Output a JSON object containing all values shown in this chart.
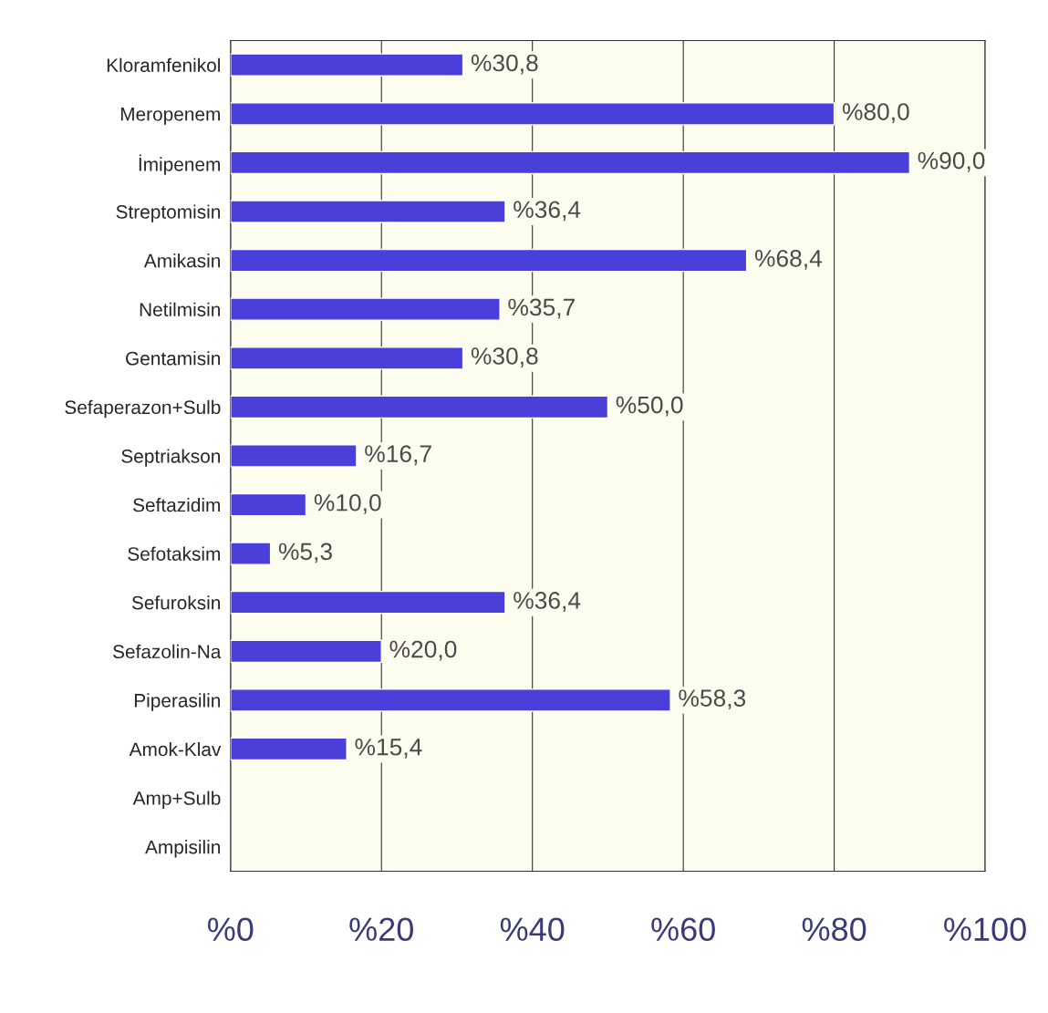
{
  "chart_data": {
    "type": "bar",
    "orientation": "horizontal",
    "categories": [
      "Kloramfenikol",
      "Meropenem",
      "İmipenem",
      "Streptomisin",
      "Amikasin",
      "Netilmisin",
      "Gentamisin",
      "Sefaperazon+Sulb",
      "Septriakson",
      "Seftazidim",
      "Sefotaksim",
      "Sefuroksin",
      "Sefazolin-Na",
      "Piperasilin",
      "Amok-Klav",
      "Amp+Sulb",
      "Ampisilin"
    ],
    "values": [
      30.8,
      80.0,
      90.0,
      36.4,
      68.4,
      35.7,
      30.8,
      50.0,
      16.7,
      10.0,
      5.3,
      36.4,
      20.0,
      58.3,
      15.4,
      null,
      null
    ],
    "value_labels": [
      "%30,8",
      "%80,0",
      "%90,0",
      "%36,4",
      "%68,4",
      "%35,7",
      "%30,8",
      "%50,0",
      "%16,7",
      "%10,0",
      "%5,3",
      "%36,4",
      "%20,0",
      "%58,3",
      "%15,4",
      null,
      null
    ],
    "color": "#4a3fd8",
    "xlim": [
      0,
      100
    ],
    "xticks": [
      {
        "value": 0,
        "label": "%0"
      },
      {
        "value": 20,
        "label": "%20"
      },
      {
        "value": 40,
        "label": "%40"
      },
      {
        "value": 60,
        "label": "%60"
      },
      {
        "value": 80,
        "label": "%80"
      },
      {
        "value": 100,
        "label": "%100"
      }
    ],
    "grid": "x"
  }
}
